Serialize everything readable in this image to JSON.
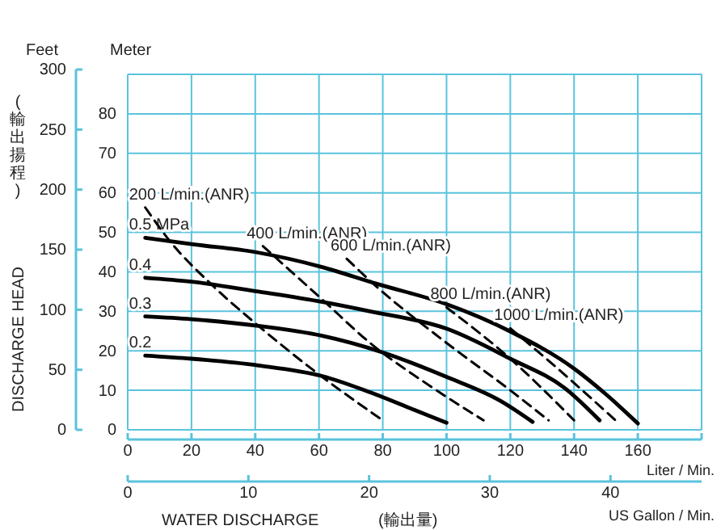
{
  "chart_data": {
    "type": "line",
    "xlabel": "Liter / Min.",
    "x2label": "US Gallon / Min.",
    "ylabel": "Meter",
    "y2label": "Feet",
    "annotations": [
      "DISCHARGE HEAD",
      "(輸出揚程)",
      "WATER DISCHARGE",
      "(輸出量)"
    ],
    "xlim": [
      0,
      180
    ],
    "xticks": [
      0,
      20,
      40,
      60,
      80,
      100,
      120,
      140,
      160,
      {
        "value": 180,
        "label": null
      }
    ],
    "x2lim": [
      0,
      47.55
    ],
    "x2ticks": [
      0,
      10,
      20,
      30,
      40
    ],
    "ylim": [
      0,
      90
    ],
    "yticks": [
      0,
      10,
      20,
      30,
      40,
      50,
      60,
      70,
      80,
      {
        "value": 90,
        "label": null
      }
    ],
    "y2lim": [
      0,
      300
    ],
    "y2ticks": [
      0,
      50,
      100,
      150,
      200,
      250,
      300
    ],
    "grid": true,
    "legend": false,
    "marker": "none",
    "series": [
      {
        "name": "0.5 MPa",
        "color": "#000000",
        "line_style": "solid",
        "x": [
          5.5,
          20,
          40,
          61,
          78,
          100,
          120,
          140,
          150,
          160
        ],
        "values": [
          48.6,
          47,
          45,
          41.2,
          37,
          31.8,
          24.9,
          15.5,
          9,
          1.6
        ]
      },
      {
        "name": "0.4",
        "color": "#000000",
        "line_style": "solid",
        "x": [
          5.5,
          20,
          41,
          61,
          76,
          100,
          120,
          137,
          148
        ],
        "values": [
          38.5,
          37.5,
          35,
          32.4,
          30,
          25.6,
          18,
          10.6,
          2.4
        ]
      },
      {
        "name": "0.3",
        "color": "#000000",
        "line_style": "solid",
        "x": [
          5.5,
          20,
          41,
          61,
          80,
          100,
          117,
          127
        ],
        "values": [
          28.7,
          28,
          26.3,
          23.8,
          19.6,
          13.4,
          7.3,
          2
        ]
      },
      {
        "name": "0.2",
        "color": "#000000",
        "line_style": "solid",
        "x": [
          5.5,
          20,
          41,
          61,
          76,
          90,
          100
        ],
        "values": [
          18.8,
          18,
          16.3,
          13.6,
          9.5,
          5,
          1.8
        ]
      },
      {
        "name": "200 L/min.(ANR)",
        "color": "#000000",
        "line_style": "dashed",
        "x": [
          5.5,
          13,
          26,
          40,
          60,
          80
        ],
        "values": [
          56.3,
          48,
          37,
          27,
          14,
          2.4
        ]
      },
      {
        "name": "400 L/min.(ANR)",
        "color": "#000000",
        "line_style": "dashed",
        "x": [
          42.4,
          61,
          76,
          95,
          111.6
        ],
        "values": [
          46.5,
          33,
          22,
          11,
          2.4
        ]
      },
      {
        "name": "600 L/min.(ANR)",
        "color": "#000000",
        "line_style": "dashed",
        "x": [
          68.7,
          77,
          100,
          120,
          132
        ],
        "values": [
          43.3,
          37,
          22,
          10,
          2.4
        ]
      },
      {
        "name": "800 L/min.(ANR)",
        "color": "#000000",
        "line_style": "dashed",
        "x": [
          100,
          120,
          140
        ],
        "values": [
          31,
          18,
          2.4
        ]
      },
      {
        "name": "1000 L/min.(ANR)",
        "color": "#000000",
        "line_style": "dashed",
        "x": [
          120,
          137,
          153
        ],
        "values": [
          25.7,
          14,
          2.4
        ]
      }
    ]
  }
}
